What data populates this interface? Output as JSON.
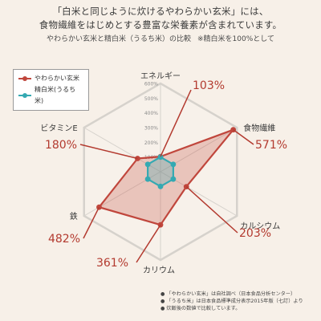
{
  "header": {
    "title": "「白米と同じように炊けるやわらかい玄米」には、",
    "title2": "食物繊維をはじめとする豊富な栄養素が含まれています。",
    "subtitle": "やわらかい玄米と精白米（うるち米）の比較",
    "note": "※精白米を100%として"
  },
  "colors": {
    "brown_rice": "#c0463c",
    "white_rice": "#34a9b2",
    "grid": "#d6d2cc",
    "tick": "#8a8a8a",
    "value_label": "#b33a2f"
  },
  "chart_data": {
    "type": "radar",
    "categories": [
      "エネルギー",
      "食物繊維",
      "カルシウム",
      "カリウム",
      "鉄",
      "ビタミンE"
    ],
    "value_labels": [
      "103%",
      "571%",
      "203%",
      "361%",
      "482%",
      "180%"
    ],
    "ticks": [
      "100%",
      "200%",
      "300%",
      "400%",
      "500%",
      "600%"
    ],
    "rmax": 600,
    "series": [
      {
        "name": "やわらかい玄米",
        "values": [
          103,
          571,
          203,
          361,
          482,
          180
        ]
      },
      {
        "name": "精白米(うるち米)",
        "values": [
          100,
          100,
          100,
          100,
          100,
          100
        ]
      }
    ],
    "legend": "top-left"
  },
  "footnotes": [
    "「やわらかい玄米」は自社調べ（日本食品分析センター）",
    "「うるち米」は日本食品標準成分表示2015年版（七訂）より",
    "炊飯後の数値で比較しています。"
  ]
}
